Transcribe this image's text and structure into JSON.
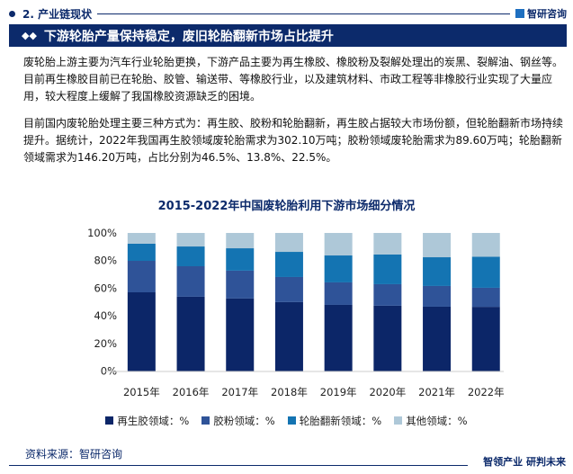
{
  "header": {
    "section": "2. 产业链现状",
    "logo": "智研咨询"
  },
  "title_bar": {
    "title": "下游轮胎产量保持稳定，废旧轮胎翻新市场占比提升"
  },
  "paragraphs": [
    "废轮胎上游主要为汽车行业轮胎更换，下游产品主要为再生橡胶、橡胶粉及裂解处理出的炭黑、裂解油、钢丝等。目前再生橡胶目前已在轮胎、胶管、输送带、等橡胶行业，以及建筑材料、市政工程等非橡胶行业实现了大量应用，较大程度上缓解了我国橡胶资源缺乏的困境。",
    "目前国内废轮胎处理主要三种方式为：再生胶、胶粉和轮胎翻新，再生胶占据较大市场份额，但轮胎翻新市场持续提升。据统计，2022年我国再生胶领域废轮胎需求为302.10万吨；胶粉领域废轮胎需求为89.60万吨；轮胎翻新领域需求为146.20万吨，占比分别为46.5%、13.8%、22.5%。"
  ],
  "chart_data": {
    "type": "bar",
    "stacked": true,
    "title": "2015-2022年中国废轮胎利用下游市场细分情况",
    "categories": [
      "2015年",
      "2016年",
      "2017年",
      "2018年",
      "2019年",
      "2020年",
      "2021年",
      "2022年"
    ],
    "ylim": [
      0,
      100
    ],
    "yticks": [
      "0%",
      "20%",
      "40%",
      "60%",
      "80%",
      "100%"
    ],
    "legend_position": "bottom",
    "series": [
      {
        "name": "再生胶领域：%",
        "color": "#0c2668",
        "values": [
          57.0,
          53.8,
          52.5,
          49.9,
          47.9,
          47.3,
          46.6,
          46.5
        ]
      },
      {
        "name": "胶粉领域：%",
        "color": "#2f5398",
        "values": [
          22.8,
          22.1,
          20.2,
          18.2,
          16.3,
          15.6,
          15.0,
          13.8
        ]
      },
      {
        "name": "轮胎翻新领域：%",
        "color": "#1474b2",
        "values": [
          12.4,
          14.3,
          16.2,
          18.2,
          19.5,
          21.5,
          20.8,
          22.5
        ]
      },
      {
        "name": "其他领域：%",
        "color": "#aec8d8",
        "values": [
          7.8,
          9.8,
          11.1,
          13.7,
          16.3,
          15.6,
          17.6,
          17.2
        ]
      }
    ]
  },
  "footer": {
    "source": "资料来源：智研咨询",
    "slogan": "智领产业 研判未来"
  }
}
